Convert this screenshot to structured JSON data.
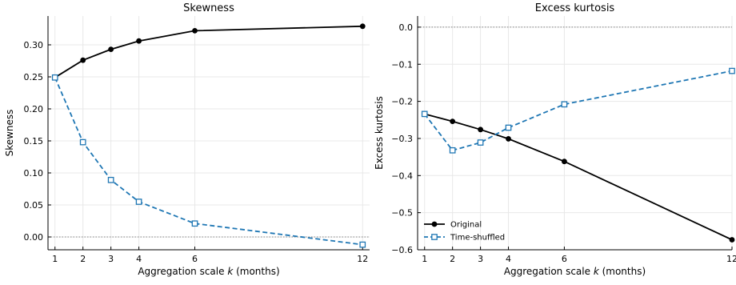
{
  "chart_data": [
    {
      "type": "line",
      "title": "Skewness",
      "xlabel": "Aggregation scale k (months)",
      "ylabel": "Skewness",
      "x": [
        1,
        2,
        3,
        4,
        6,
        12
      ],
      "xticks": [
        "1",
        "2",
        "3",
        "4",
        "6",
        "12"
      ],
      "xlim": [
        0.75,
        12.25
      ],
      "ylim": [
        -0.02,
        0.345
      ],
      "yticks": [
        0.0,
        0.05,
        0.1,
        0.15,
        0.2,
        0.25,
        0.3
      ],
      "ytick_labels": [
        "0.00",
        "0.05",
        "0.10",
        "0.15",
        "0.20",
        "0.25",
        "0.30"
      ],
      "reference_line": 0,
      "grid": true,
      "series": [
        {
          "name": "Original",
          "color": "#000000",
          "style": "solid",
          "marker": "circle",
          "values": [
            0.249,
            0.276,
            0.293,
            0.306,
            0.322,
            0.329
          ]
        },
        {
          "name": "Time-shuffled",
          "color": "#1f77b4",
          "style": "dashed",
          "marker": "square",
          "values": [
            0.249,
            0.148,
            0.089,
            0.055,
            0.021,
            -0.012
          ]
        }
      ]
    },
    {
      "type": "line",
      "title": "Excess kurtosis",
      "xlabel": "Aggregation scale k (months)",
      "ylabel": "Excess kurtosis",
      "x": [
        1,
        2,
        3,
        4,
        6,
        12
      ],
      "xticks": [
        "1",
        "2",
        "3",
        "4",
        "6",
        "12"
      ],
      "xlim": [
        0.75,
        12.0
      ],
      "ylim": [
        -0.6,
        0.03
      ],
      "yticks": [
        0.0,
        -0.1,
        -0.2,
        -0.3,
        -0.4,
        -0.5,
        -0.6
      ],
      "ytick_labels": [
        "0.0",
        "−0.1",
        "−0.2",
        "−0.3",
        "−0.4",
        "−0.5",
        "−0.6"
      ],
      "reference_line": 0,
      "grid": true,
      "legend": {
        "position": "bottom-left",
        "entries": [
          "Original",
          "Time-shuffled"
        ]
      },
      "series": [
        {
          "name": "Original",
          "color": "#000000",
          "style": "solid",
          "marker": "circle",
          "values": [
            -0.234,
            -0.254,
            -0.276,
            -0.301,
            -0.362,
            -0.573
          ]
        },
        {
          "name": "Time-shuffled",
          "color": "#1f77b4",
          "style": "dashed",
          "marker": "square",
          "values": [
            -0.234,
            -0.332,
            -0.311,
            -0.271,
            -0.208,
            -0.118
          ]
        }
      ]
    }
  ]
}
